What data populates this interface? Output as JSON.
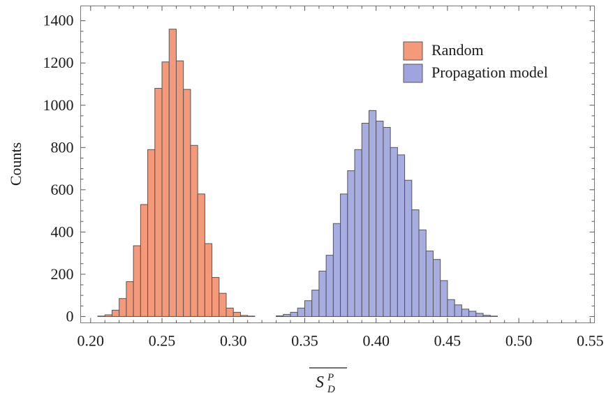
{
  "chart_data": {
    "type": "bar",
    "subtype": "histogram",
    "title": "",
    "ylabel": "Counts",
    "xlabel": {
      "base": "S",
      "superscript": "P",
      "subscript": "D",
      "overline": true
    },
    "xlim": [
      0.193,
      0.553
    ],
    "ylim": [
      -30,
      1470
    ],
    "xticks": [
      "0.20",
      "0.25",
      "0.30",
      "0.35",
      "0.40",
      "0.45",
      "0.50",
      "0.55"
    ],
    "yticks": [
      "0",
      "200",
      "400",
      "600",
      "800",
      "1000",
      "1200",
      "1400"
    ],
    "bin_width": 0.005,
    "legend_position": "top-right",
    "series": [
      {
        "name": "Random",
        "color": "#f4997a",
        "edge_color": "#555555",
        "bins": [
          {
            "x0": 0.205,
            "count": 2
          },
          {
            "x0": 0.21,
            "count": 8
          },
          {
            "x0": 0.215,
            "count": 30
          },
          {
            "x0": 0.22,
            "count": 85
          },
          {
            "x0": 0.225,
            "count": 165
          },
          {
            "x0": 0.23,
            "count": 335
          },
          {
            "x0": 0.235,
            "count": 530
          },
          {
            "x0": 0.24,
            "count": 790
          },
          {
            "x0": 0.245,
            "count": 1080
          },
          {
            "x0": 0.25,
            "count": 1205
          },
          {
            "x0": 0.255,
            "count": 1360
          },
          {
            "x0": 0.26,
            "count": 1210
          },
          {
            "x0": 0.265,
            "count": 1075
          },
          {
            "x0": 0.27,
            "count": 810
          },
          {
            "x0": 0.275,
            "count": 580
          },
          {
            "x0": 0.28,
            "count": 345
          },
          {
            "x0": 0.285,
            "count": 185
          },
          {
            "x0": 0.29,
            "count": 110
          },
          {
            "x0": 0.295,
            "count": 40
          },
          {
            "x0": 0.3,
            "count": 20
          },
          {
            "x0": 0.305,
            "count": 5
          },
          {
            "x0": 0.31,
            "count": 2
          }
        ]
      },
      {
        "name": "Propagation model",
        "color": "#9fa4de",
        "edge_color": "#555555",
        "bins": [
          {
            "x0": 0.33,
            "count": 3
          },
          {
            "x0": 0.335,
            "count": 10
          },
          {
            "x0": 0.34,
            "count": 20
          },
          {
            "x0": 0.345,
            "count": 40
          },
          {
            "x0": 0.35,
            "count": 75
          },
          {
            "x0": 0.355,
            "count": 125
          },
          {
            "x0": 0.36,
            "count": 215
          },
          {
            "x0": 0.365,
            "count": 290
          },
          {
            "x0": 0.37,
            "count": 440
          },
          {
            "x0": 0.375,
            "count": 580
          },
          {
            "x0": 0.38,
            "count": 690
          },
          {
            "x0": 0.385,
            "count": 790
          },
          {
            "x0": 0.39,
            "count": 915
          },
          {
            "x0": 0.395,
            "count": 975
          },
          {
            "x0": 0.4,
            "count": 925
          },
          {
            "x0": 0.405,
            "count": 895
          },
          {
            "x0": 0.41,
            "count": 800
          },
          {
            "x0": 0.415,
            "count": 765
          },
          {
            "x0": 0.42,
            "count": 645
          },
          {
            "x0": 0.425,
            "count": 505
          },
          {
            "x0": 0.43,
            "count": 410
          },
          {
            "x0": 0.435,
            "count": 310
          },
          {
            "x0": 0.44,
            "count": 270
          },
          {
            "x0": 0.445,
            "count": 170
          },
          {
            "x0": 0.45,
            "count": 80
          },
          {
            "x0": 0.455,
            "count": 55
          },
          {
            "x0": 0.46,
            "count": 35
          },
          {
            "x0": 0.465,
            "count": 25
          },
          {
            "x0": 0.47,
            "count": 15
          },
          {
            "x0": 0.475,
            "count": 6
          },
          {
            "x0": 0.48,
            "count": 2
          }
        ]
      }
    ]
  }
}
